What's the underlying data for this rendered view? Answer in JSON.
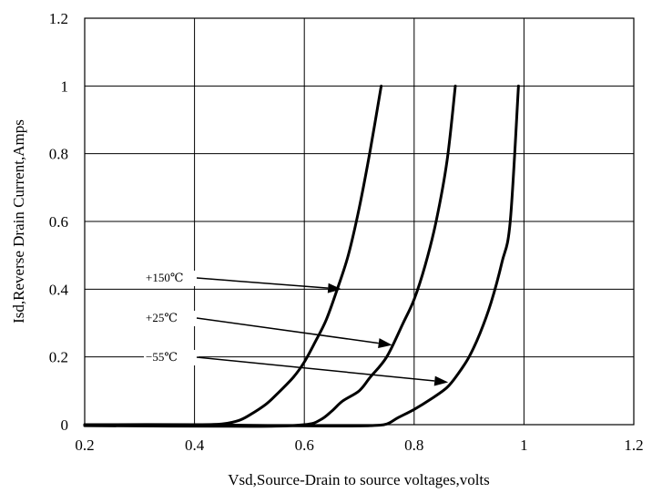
{
  "chart_data": {
    "type": "line",
    "title": "",
    "xlabel": "Vsd,Source-Drain to source voltages,volts",
    "ylabel": "Isd,Reverse Drain Current,Amps",
    "xlim": [
      0.2,
      1.2
    ],
    "ylim": [
      0,
      1.2
    ],
    "x_ticks": [
      0.2,
      0.4,
      0.6,
      0.8,
      1,
      1.2
    ],
    "x_tick_labels": [
      "0.2",
      "0.4",
      "0.6",
      "0.8",
      "1",
      "1.2"
    ],
    "y_ticks": [
      0,
      0.2,
      0.4,
      0.6,
      0.8,
      1,
      1.2
    ],
    "y_tick_labels": [
      "0",
      "0.2",
      "0.4",
      "0.6",
      "0.8",
      "1",
      "1.2"
    ],
    "grid": true,
    "legend": "none",
    "series": [
      {
        "x": [
          0.2,
          0.4,
          0.45,
          0.48,
          0.5,
          0.53,
          0.55,
          0.58,
          0.6,
          0.62,
          0.64,
          0.66,
          0.68,
          0.7,
          0.72,
          0.74
        ],
        "y": [
          0,
          0,
          0.002,
          0.012,
          0.028,
          0.06,
          0.09,
          0.14,
          0.185,
          0.245,
          0.31,
          0.4,
          0.5,
          0.64,
          0.81,
          1.0
        ]
      },
      {
        "x": [
          0.2,
          0.5,
          0.6,
          0.63,
          0.65,
          0.67,
          0.7,
          0.72,
          0.75,
          0.78,
          0.8,
          0.82,
          0.84,
          0.86,
          0.875
        ],
        "y": [
          -0.003,
          -0.005,
          0,
          0.015,
          0.04,
          0.07,
          0.1,
          0.14,
          0.2,
          0.3,
          0.37,
          0.47,
          0.6,
          0.78,
          1.0
        ]
      },
      {
        "x": [
          0.2,
          0.4,
          0.55,
          0.65,
          0.72,
          0.75,
          0.77,
          0.8,
          0.83,
          0.86,
          0.88,
          0.9,
          0.92,
          0.94,
          0.96,
          0.975,
          0.99
        ],
        "y": [
          0,
          0,
          -0.003,
          -0.004,
          -0.003,
          0.002,
          0.02,
          0.045,
          0.075,
          0.11,
          0.15,
          0.2,
          0.27,
          0.36,
          0.48,
          0.6,
          1.0
        ]
      }
    ],
    "annotations": [
      {
        "text": "+150℃",
        "arrow_to": [
          0.668,
          0.4
        ]
      },
      {
        "text": "+25℃",
        "arrow_to": [
          0.76,
          0.235
        ]
      },
      {
        "text": "−55℃",
        "arrow_to": [
          0.862,
          0.125
        ]
      }
    ]
  }
}
